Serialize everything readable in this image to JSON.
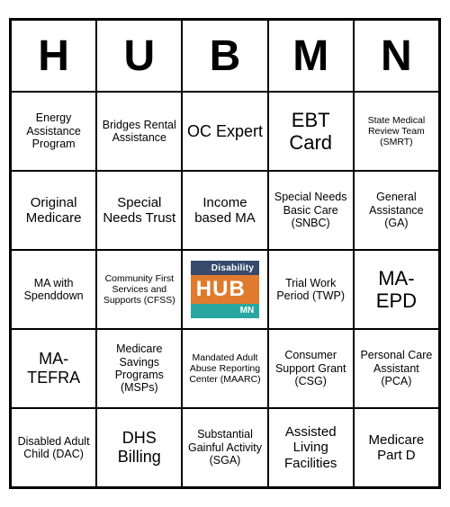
{
  "card": {
    "border_color": "#000000",
    "background_color": "#ffffff",
    "text_color": "#000000",
    "logo": {
      "top_band": {
        "text": "Disability",
        "bg": "#374a6b",
        "fg": "#ffffff"
      },
      "mid_band": {
        "text": "HUB",
        "bg": "#e07b2e",
        "fg": "#ffffff"
      },
      "bot_band": {
        "text": "MN",
        "bg": "#2aa6a0",
        "fg": "#ffffff"
      }
    },
    "headers": [
      "H",
      "U",
      "B",
      "M",
      "N"
    ],
    "header_fontsize": 48,
    "cells": [
      [
        {
          "text": "Energy Assistance Program",
          "size": "sm"
        },
        {
          "text": "Bridges Rental Assistance",
          "size": "sm"
        },
        {
          "text": "OC Expert",
          "size": "lg"
        },
        {
          "text": "EBT Card",
          "size": "xl"
        },
        {
          "text": "State Medical Review Team (SMRT)",
          "size": "xs"
        }
      ],
      [
        {
          "text": "Original Medicare",
          "size": "md"
        },
        {
          "text": "Special Needs Trust",
          "size": "md"
        },
        {
          "text": "Income based MA",
          "size": "md"
        },
        {
          "text": "Special Needs Basic Care (SNBC)",
          "size": "sm"
        },
        {
          "text": "General Assistance (GA)",
          "size": "sm"
        }
      ],
      [
        {
          "text": "MA with Spenddown",
          "size": "sm"
        },
        {
          "text": "Community First Services and Supports (CFSS)",
          "size": "xs"
        },
        {
          "text": "",
          "size": "logo"
        },
        {
          "text": "Trial Work Period (TWP)",
          "size": "sm"
        },
        {
          "text": "MA-EPD",
          "size": "xl"
        }
      ],
      [
        {
          "text": "MA-TEFRA",
          "size": "lg"
        },
        {
          "text": "Medicare Savings Programs (MSPs)",
          "size": "sm"
        },
        {
          "text": "Mandated Adult Abuse Reporting Center (MAARC)",
          "size": "xs"
        },
        {
          "text": "Consumer Support Grant (CSG)",
          "size": "sm"
        },
        {
          "text": "Personal Care Assistant (PCA)",
          "size": "sm"
        }
      ],
      [
        {
          "text": "Disabled Adult Child (DAC)",
          "size": "sm"
        },
        {
          "text": "DHS Billing",
          "size": "lg"
        },
        {
          "text": "Substantial Gainful Activity (SGA)",
          "size": "sm"
        },
        {
          "text": "Assisted Living Facilities",
          "size": "md"
        },
        {
          "text": "Medicare Part D",
          "size": "md"
        }
      ]
    ]
  }
}
